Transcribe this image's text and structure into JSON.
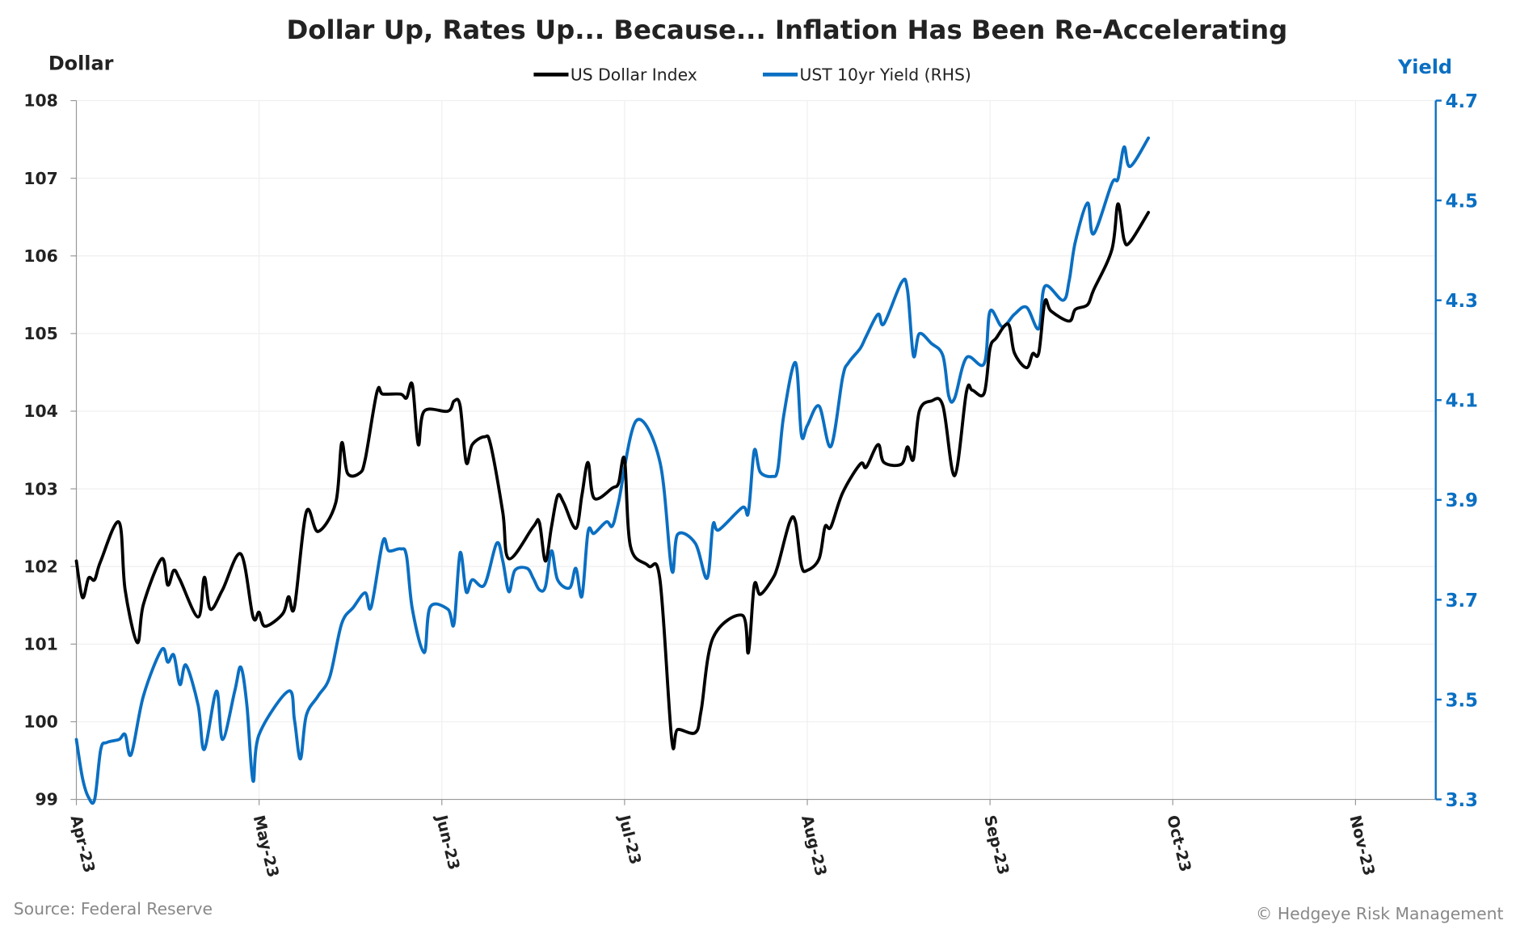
{
  "chart_data": {
    "type": "line",
    "title": "Dollar Up, Rates Up... Because... Inflation Has Been Re-Accelerating",
    "ylabel_left": "Dollar",
    "ylabel_right": "Yield",
    "ylim_left": [
      99,
      108
    ],
    "ylim_right": [
      3.3,
      4.7
    ],
    "yticks_left": [
      "99",
      "100",
      "101",
      "102",
      "103",
      "104",
      "105",
      "106",
      "107",
      "108"
    ],
    "yticks_right": [
      "3.3",
      "3.5",
      "3.7",
      "3.9",
      "4.1",
      "4.3",
      "4.5",
      "4.7"
    ],
    "xticks": [
      "Apr-23",
      "May-23",
      "Jun-23",
      "Jul-23",
      "Aug-23",
      "Sep-23",
      "Oct-23",
      "Nov-23"
    ],
    "xlim": [
      "2023-04-01",
      "2023-11-30"
    ],
    "grid": true,
    "legend": "top-center",
    "source": "Source: Federal Reserve",
    "credit": "© Hedgeye Risk Management",
    "colors": {
      "dollar": "#000000",
      "yield": "#0a6fc2",
      "right_axis": "#0a6fc2"
    },
    "series": [
      {
        "name": "US Dollar Index",
        "axis": "left",
        "points": [
          [
            "2023-04-01",
            102.07
          ],
          [
            "2023-04-02",
            101.6
          ],
          [
            "2023-04-03",
            101.85
          ],
          [
            "2023-04-04",
            101.83
          ],
          [
            "2023-04-05",
            102.07
          ],
          [
            "2023-04-08",
            102.57
          ],
          [
            "2023-04-09",
            101.7
          ],
          [
            "2023-04-11",
            101.02
          ],
          [
            "2023-04-12",
            101.51
          ],
          [
            "2023-04-15",
            102.1
          ],
          [
            "2023-04-16",
            101.76
          ],
          [
            "2023-04-17",
            101.95
          ],
          [
            "2023-04-18",
            101.83
          ],
          [
            "2023-04-21",
            101.35
          ],
          [
            "2023-04-22",
            101.86
          ],
          [
            "2023-04-23",
            101.45
          ],
          [
            "2023-04-25",
            101.7
          ],
          [
            "2023-04-28",
            102.16
          ],
          [
            "2023-04-30",
            101.35
          ],
          [
            "2023-05-01",
            101.41
          ],
          [
            "2023-05-02",
            101.23
          ],
          [
            "2023-05-05",
            101.39
          ],
          [
            "2023-05-06",
            101.61
          ],
          [
            "2023-05-07",
            101.48
          ],
          [
            "2023-05-09",
            102.7
          ],
          [
            "2023-05-11",
            102.45
          ],
          [
            "2023-05-14",
            102.82
          ],
          [
            "2023-05-15",
            103.59
          ],
          [
            "2023-05-16",
            103.2
          ],
          [
            "2023-05-18",
            103.2
          ],
          [
            "2023-05-19",
            103.38
          ],
          [
            "2023-05-21",
            104.25
          ],
          [
            "2023-05-22",
            104.22
          ],
          [
            "2023-05-25",
            104.22
          ],
          [
            "2023-05-26",
            104.17
          ],
          [
            "2023-05-27",
            104.34
          ],
          [
            "2023-05-28",
            103.57
          ],
          [
            "2023-05-29",
            104.0
          ],
          [
            "2023-06-02",
            104.0
          ],
          [
            "2023-06-03",
            104.13
          ],
          [
            "2023-06-04",
            104.07
          ],
          [
            "2023-06-05",
            103.34
          ],
          [
            "2023-06-06",
            103.57
          ],
          [
            "2023-06-08",
            103.67
          ],
          [
            "2023-06-09",
            103.57
          ],
          [
            "2023-06-11",
            102.7
          ],
          [
            "2023-06-12",
            102.1
          ],
          [
            "2023-06-16",
            102.51
          ],
          [
            "2023-06-17",
            102.57
          ],
          [
            "2023-06-18",
            102.07
          ],
          [
            "2023-06-19",
            102.51
          ],
          [
            "2023-06-20",
            102.91
          ],
          [
            "2023-06-21",
            102.82
          ],
          [
            "2023-06-23",
            102.49
          ],
          [
            "2023-06-24",
            102.92
          ],
          [
            "2023-06-25",
            103.34
          ],
          [
            "2023-06-26",
            102.88
          ],
          [
            "2023-06-29",
            103.01
          ],
          [
            "2023-06-30",
            103.07
          ],
          [
            "2023-07-01",
            103.38
          ],
          [
            "2023-07-02",
            102.26
          ],
          [
            "2023-07-05",
            102.01
          ],
          [
            "2023-07-07",
            101.83
          ],
          [
            "2023-07-09",
            99.77
          ],
          [
            "2023-07-10",
            99.9
          ],
          [
            "2023-07-13",
            99.86
          ],
          [
            "2023-07-14",
            100.15
          ],
          [
            "2023-07-16",
            101.08
          ],
          [
            "2023-07-21",
            101.37
          ],
          [
            "2023-07-22",
            100.89
          ],
          [
            "2023-07-23",
            101.76
          ],
          [
            "2023-07-24",
            101.64
          ],
          [
            "2023-07-26",
            101.83
          ],
          [
            "2023-07-27",
            102.01
          ],
          [
            "2023-07-29",
            102.57
          ],
          [
            "2023-07-30",
            102.57
          ],
          [
            "2023-07-31",
            102.01
          ],
          [
            "2023-08-01",
            101.95
          ],
          [
            "2023-08-03",
            102.1
          ],
          [
            "2023-08-04",
            102.51
          ],
          [
            "2023-08-05",
            102.51
          ],
          [
            "2023-08-07",
            102.95
          ],
          [
            "2023-08-10",
            103.32
          ],
          [
            "2023-08-11",
            103.28
          ],
          [
            "2023-08-13",
            103.57
          ],
          [
            "2023-08-14",
            103.34
          ],
          [
            "2023-08-17",
            103.32
          ],
          [
            "2023-08-18",
            103.54
          ],
          [
            "2023-08-19",
            103.38
          ],
          [
            "2023-08-20",
            104.0
          ],
          [
            "2023-08-22",
            104.13
          ],
          [
            "2023-08-24",
            104.07
          ],
          [
            "2023-08-26",
            103.17
          ],
          [
            "2023-08-28",
            104.25
          ],
          [
            "2023-08-29",
            104.27
          ],
          [
            "2023-08-31",
            104.23
          ],
          [
            "2023-09-01",
            104.81
          ],
          [
            "2023-09-02",
            104.94
          ],
          [
            "2023-09-04",
            105.12
          ],
          [
            "2023-09-05",
            104.75
          ],
          [
            "2023-09-07",
            104.56
          ],
          [
            "2023-09-08",
            104.74
          ],
          [
            "2023-09-09",
            104.75
          ],
          [
            "2023-09-10",
            105.41
          ],
          [
            "2023-09-11",
            105.29
          ],
          [
            "2023-09-14",
            105.16
          ],
          [
            "2023-09-15",
            105.31
          ],
          [
            "2023-09-17",
            105.37
          ],
          [
            "2023-09-18",
            105.56
          ],
          [
            "2023-09-21",
            106.08
          ],
          [
            "2023-09-22",
            106.67
          ],
          [
            "2023-09-23",
            106.21
          ],
          [
            "2023-09-24",
            106.18
          ],
          [
            "2023-09-27",
            106.56
          ]
        ]
      },
      {
        "name": "UST 10yr Yield (RHS)",
        "axis": "right",
        "points": [
          [
            "2023-04-01",
            3.42
          ],
          [
            "2023-04-02",
            3.343
          ],
          [
            "2023-04-03",
            3.304
          ],
          [
            "2023-04-04",
            3.3
          ],
          [
            "2023-04-05",
            3.4
          ],
          [
            "2023-04-06",
            3.414
          ],
          [
            "2023-04-08",
            3.42
          ],
          [
            "2023-04-09",
            3.43
          ],
          [
            "2023-04-10",
            3.39
          ],
          [
            "2023-04-12",
            3.507
          ],
          [
            "2023-04-15",
            3.6
          ],
          [
            "2023-04-16",
            3.575
          ],
          [
            "2023-04-17",
            3.589
          ],
          [
            "2023-04-18",
            3.53
          ],
          [
            "2023-04-19",
            3.569
          ],
          [
            "2023-04-21",
            3.488
          ],
          [
            "2023-04-22",
            3.4
          ],
          [
            "2023-04-24",
            3.517
          ],
          [
            "2023-04-25",
            3.42
          ],
          [
            "2023-04-27",
            3.517
          ],
          [
            "2023-04-28",
            3.565
          ],
          [
            "2023-04-29",
            3.488
          ],
          [
            "2023-04-30",
            3.337
          ],
          [
            "2023-05-01",
            3.43
          ],
          [
            "2023-05-06",
            3.517
          ],
          [
            "2023-05-07",
            3.459
          ],
          [
            "2023-05-08",
            3.381
          ],
          [
            "2023-05-09",
            3.468
          ],
          [
            "2023-05-11",
            3.507
          ],
          [
            "2023-05-13",
            3.546
          ],
          [
            "2023-05-15",
            3.652
          ],
          [
            "2023-05-17",
            3.685
          ],
          [
            "2023-05-19",
            3.714
          ],
          [
            "2023-05-20",
            3.685
          ],
          [
            "2023-05-22",
            3.817
          ],
          [
            "2023-05-23",
            3.798
          ],
          [
            "2023-05-25",
            3.802
          ],
          [
            "2023-05-26",
            3.788
          ],
          [
            "2023-05-27",
            3.681
          ],
          [
            "2023-05-29",
            3.594
          ],
          [
            "2023-05-30",
            3.685
          ],
          [
            "2023-06-02",
            3.681
          ],
          [
            "2023-06-03",
            3.652
          ],
          [
            "2023-06-04",
            3.794
          ],
          [
            "2023-06-05",
            3.716
          ],
          [
            "2023-06-06",
            3.74
          ],
          [
            "2023-06-08",
            3.73
          ],
          [
            "2023-06-10",
            3.813
          ],
          [
            "2023-06-11",
            3.778
          ],
          [
            "2023-06-12",
            3.716
          ],
          [
            "2023-06-13",
            3.759
          ],
          [
            "2023-06-15",
            3.763
          ],
          [
            "2023-06-16",
            3.743
          ],
          [
            "2023-06-17",
            3.72
          ],
          [
            "2023-06-18",
            3.726
          ],
          [
            "2023-06-19",
            3.798
          ],
          [
            "2023-06-20",
            3.74
          ],
          [
            "2023-06-22",
            3.724
          ],
          [
            "2023-06-23",
            3.763
          ],
          [
            "2023-06-24",
            3.707
          ],
          [
            "2023-06-25",
            3.836
          ],
          [
            "2023-06-26",
            3.833
          ],
          [
            "2023-06-28",
            3.856
          ],
          [
            "2023-06-29",
            3.848
          ],
          [
            "2023-06-30",
            3.895
          ],
          [
            "2023-07-03",
            4.059
          ],
          [
            "2023-07-07",
            3.976
          ],
          [
            "2023-07-09",
            3.759
          ],
          [
            "2023-07-10",
            3.831
          ],
          [
            "2023-07-13",
            3.813
          ],
          [
            "2023-07-15",
            3.743
          ],
          [
            "2023-07-16",
            3.85
          ],
          [
            "2023-07-17",
            3.84
          ],
          [
            "2023-07-21",
            3.885
          ],
          [
            "2023-07-22",
            3.875
          ],
          [
            "2023-07-23",
            3.999
          ],
          [
            "2023-07-24",
            3.956
          ],
          [
            "2023-07-26",
            3.947
          ],
          [
            "2023-07-27",
            3.962
          ],
          [
            "2023-07-28",
            4.069
          ],
          [
            "2023-07-30",
            4.175
          ],
          [
            "2023-07-31",
            4.03
          ],
          [
            "2023-08-01",
            4.049
          ],
          [
            "2023-08-03",
            4.088
          ],
          [
            "2023-08-05",
            4.007
          ],
          [
            "2023-08-07",
            4.146
          ],
          [
            "2023-08-08",
            4.175
          ],
          [
            "2023-08-10",
            4.204
          ],
          [
            "2023-08-11",
            4.228
          ],
          [
            "2023-08-13",
            4.272
          ],
          [
            "2023-08-14",
            4.253
          ],
          [
            "2023-08-17",
            4.336
          ],
          [
            "2023-08-18",
            4.32
          ],
          [
            "2023-08-19",
            4.189
          ],
          [
            "2023-08-20",
            4.233
          ],
          [
            "2023-08-22",
            4.214
          ],
          [
            "2023-08-24",
            4.189
          ],
          [
            "2023-08-25",
            4.108
          ],
          [
            "2023-08-26",
            4.104
          ],
          [
            "2023-08-28",
            4.185
          ],
          [
            "2023-08-31",
            4.173
          ],
          [
            "2023-09-01",
            4.278
          ],
          [
            "2023-09-03",
            4.247
          ],
          [
            "2023-09-05",
            4.272
          ],
          [
            "2023-09-07",
            4.286
          ],
          [
            "2023-09-09",
            4.243
          ],
          [
            "2023-09-10",
            4.328
          ],
          [
            "2023-09-13",
            4.3
          ],
          [
            "2023-09-14",
            4.34
          ],
          [
            "2023-09-15",
            4.417
          ],
          [
            "2023-09-17",
            4.495
          ],
          [
            "2023-09-18",
            4.433
          ],
          [
            "2023-09-21",
            4.534
          ],
          [
            "2023-09-22",
            4.543
          ],
          [
            "2023-09-23",
            4.607
          ],
          [
            "2023-09-24",
            4.568
          ],
          [
            "2023-09-27",
            4.625
          ]
        ]
      }
    ]
  }
}
